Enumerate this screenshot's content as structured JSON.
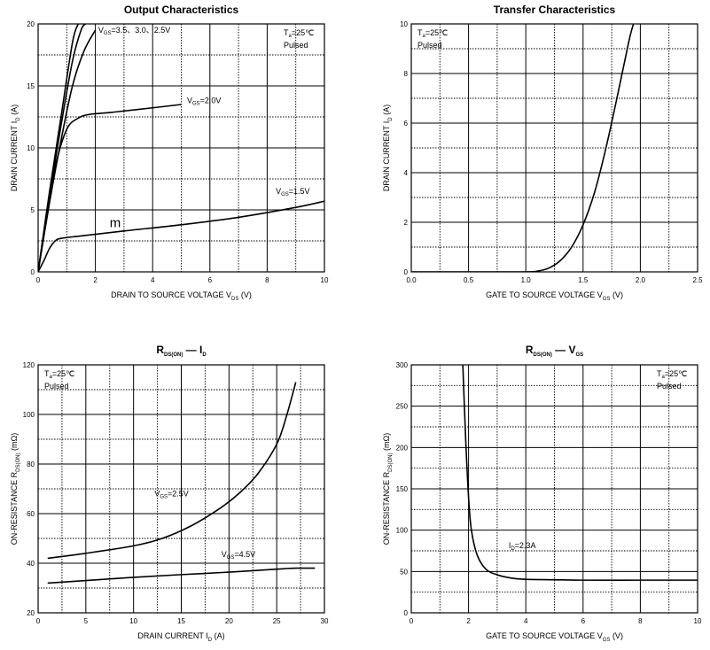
{
  "chart_data": [
    {
      "id": "output",
      "type": "line",
      "title": "Output Characteristics",
      "xlabel": "DRAIN TO SOURCE VOLTAGE",
      "xsym": "V",
      "xsub": "DS",
      "xunit": "(V)",
      "ylabel": "DRAIN CURRENT",
      "ysym": "I",
      "ysub": "D",
      "yunit": "(A)",
      "xlim": [
        0,
        10
      ],
      "ylim": [
        0,
        20
      ],
      "xticks": [
        0,
        2,
        4,
        6,
        8,
        10
      ],
      "yticks": [
        0,
        5,
        10,
        15,
        20
      ],
      "xtick_labels": [
        "0",
        "2",
        "4",
        "6",
        "8",
        "10"
      ],
      "ytick_labels": [
        "0",
        "5",
        "10",
        "15",
        "20"
      ],
      "conditions": [
        "T_a=25℃",
        "Pulsed"
      ],
      "series": [
        {
          "x": [
            0,
            0.4,
            0.8,
            1.2,
            1.4
          ],
          "y": [
            0,
            6.5,
            12.5,
            18.5,
            20
          ]
        },
        {
          "x": [
            0,
            0.4,
            0.8,
            1.2,
            1.5,
            1.65
          ],
          "y": [
            0,
            6.2,
            11.8,
            17,
            19.5,
            20
          ]
        },
        {
          "x": [
            0,
            0.4,
            0.8,
            1.2,
            1.6,
            2.0
          ],
          "y": [
            0,
            5.6,
            10.6,
            15,
            17.8,
            19.5
          ]
        },
        {
          "x": [
            0,
            0.3,
            0.6,
            1.0,
            1.4,
            1.8,
            2.5,
            3.5,
            5.0
          ],
          "y": [
            0,
            4.5,
            8.5,
            11.5,
            12.4,
            12.7,
            12.85,
            13.1,
            13.5
          ]
        },
        {
          "x": [
            0,
            0.2,
            0.4,
            0.6,
            0.8,
            1.5,
            3,
            5,
            7,
            9,
            10
          ],
          "y": [
            0,
            0.9,
            1.9,
            2.5,
            2.7,
            2.9,
            3.3,
            3.8,
            4.4,
            5.2,
            5.7
          ]
        }
      ],
      "annotations": [
        {
          "text": "V_GS=3.5、3.0、2.5V",
          "x": 2.1,
          "y": 19.3
        },
        {
          "text": "V_GS=2.0V",
          "x": 5.2,
          "y": 13.6
        },
        {
          "text": "V_GS=1.5V",
          "x": 8.3,
          "y": 6.3
        },
        {
          "text": "m",
          "x": 2.5,
          "y": 3.6
        }
      ]
    },
    {
      "id": "transfer",
      "type": "line",
      "title": "Transfer Characteristics",
      "xlabel": "GATE TO SOURCE VOLTAGE",
      "xsym": "V",
      "xsub": "GS",
      "xunit": "(V)",
      "ylabel": "DRAIN CURRENT",
      "ysym": "I",
      "ysub": "D",
      "yunit": "(A)",
      "xlim": [
        0,
        2.5
      ],
      "ylim": [
        0,
        10
      ],
      "xticks": [
        0,
        0.5,
        1.0,
        1.5,
        2.0,
        2.5
      ],
      "yticks": [
        0,
        2,
        4,
        6,
        8,
        10
      ],
      "xtick_labels": [
        "0.0",
        "0.5",
        "1.0",
        "1.5",
        "2.0",
        "2.5"
      ],
      "ytick_labels": [
        "0",
        "2",
        "4",
        "6",
        "8",
        "10"
      ],
      "conditions": [
        "T_a=25℃",
        "Pulsed"
      ],
      "series": [
        {
          "x": [
            0,
            0.5,
            1.0,
            1.1,
            1.2,
            1.3,
            1.4,
            1.5,
            1.6,
            1.7,
            1.8,
            1.9,
            1.94
          ],
          "y": [
            0,
            0,
            0,
            0.03,
            0.15,
            0.45,
            1.0,
            1.9,
            3.2,
            5.0,
            7.1,
            9.3,
            10
          ]
        }
      ],
      "annotations": []
    },
    {
      "id": "rds_id",
      "type": "line",
      "title_sym": "R",
      "title_sub": "DS(ON)",
      "title_dash": "—",
      "title_rest_sym": "I",
      "title_rest_sub": "D",
      "xlabel": "DRAIN CURRENT",
      "xsym": "I",
      "xsub": "D",
      "xunit": "(A)",
      "ylabel": "ON-RESISTANCE",
      "ysym": "R",
      "ysub": "DS(ON)",
      "yunit": "(mΩ)",
      "xlim": [
        0,
        30
      ],
      "ylim": [
        20,
        120
      ],
      "xticks": [
        0,
        5,
        10,
        15,
        20,
        25,
        30
      ],
      "yticks": [
        20,
        40,
        60,
        80,
        100,
        120
      ],
      "xtick_labels": [
        "0",
        "5",
        "10",
        "15",
        "20",
        "25",
        "30"
      ],
      "ytick_labels": [
        "20",
        "40",
        "60",
        "80",
        "100",
        "120"
      ],
      "conditions": [
        "T_a=25℃",
        "Pulsed"
      ],
      "series": [
        {
          "x": [
            1,
            5,
            10,
            13,
            16,
            19,
            21,
            23,
            25,
            26,
            27
          ],
          "y": [
            42,
            44,
            47,
            50,
            55,
            62,
            68,
            76,
            88,
            99,
            113
          ]
        },
        {
          "x": [
            1,
            5,
            10,
            15,
            20,
            25,
            27,
            29
          ],
          "y": [
            32,
            33,
            34.3,
            35.4,
            36.4,
            37.6,
            38,
            38
          ]
        }
      ],
      "annotations": [
        {
          "text": "V_GS=2.5V",
          "x": 12.2,
          "y": 67
        },
        {
          "text": "V_GS=4.5V",
          "x": 19.2,
          "y": 42.5
        }
      ]
    },
    {
      "id": "rds_vgs",
      "type": "line",
      "title_sym": "R",
      "title_sub": "DS(ON)",
      "title_dash": "—",
      "title_rest_sym": "V",
      "title_rest_sub": "GS",
      "xlabel": "GATE TO SOURCE VOLTAGE",
      "xsym": "V",
      "xsub": "GS",
      "xunit": "(V)",
      "ylabel": "ON-RESISTANCE",
      "ysym": "R",
      "ysub": "DS(ON)",
      "yunit": "(mΩ)",
      "xlim": [
        0,
        10
      ],
      "ylim": [
        0,
        300
      ],
      "xticks": [
        0,
        2,
        4,
        6,
        8,
        10
      ],
      "yticks": [
        0,
        50,
        100,
        150,
        200,
        250,
        300
      ],
      "xtick_labels": [
        "0",
        "2",
        "4",
        "6",
        "8",
        "10"
      ],
      "ytick_labels": [
        "0",
        "50",
        "100",
        "150",
        "200",
        "250",
        "300"
      ],
      "conditions": [
        "T_a=25℃",
        "Pulsed"
      ],
      "series": [
        {
          "x": [
            1.8,
            1.9,
            2.0,
            2.1,
            2.3,
            2.6,
            3.0,
            3.5,
            4.0,
            5,
            6,
            8,
            10
          ],
          "y": [
            300,
            210,
            140,
            100,
            70,
            53,
            46,
            42,
            40.5,
            40,
            39.5,
            39.5,
            39.5
          ]
        }
      ],
      "annotations": [
        {
          "text": "I_D=2.3A",
          "x": 3.4,
          "y": 78
        }
      ]
    }
  ]
}
